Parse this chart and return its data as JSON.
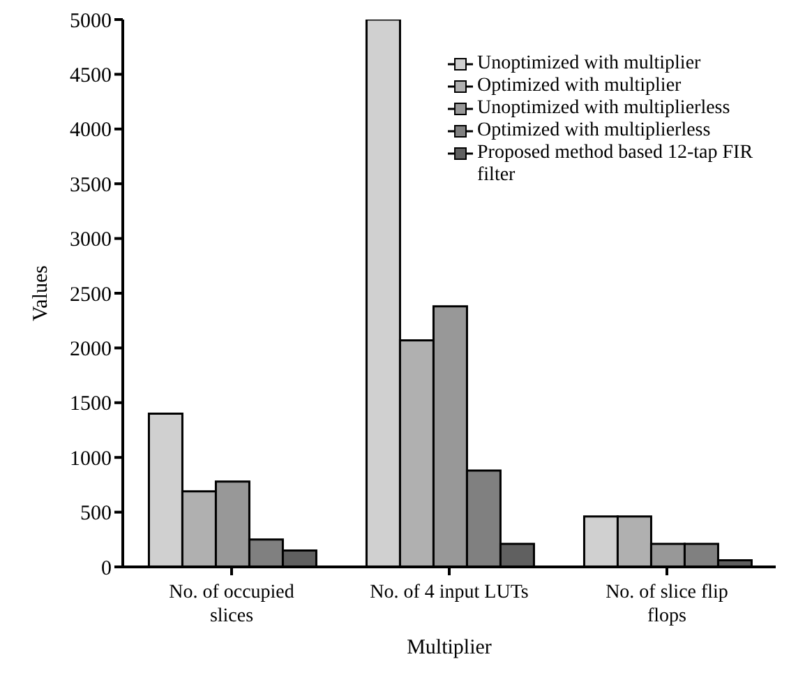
{
  "chart_data": {
    "type": "bar",
    "xlabel": "Multiplier",
    "ylabel": "Values",
    "categories": [
      "No. of occupied slices",
      "No. of 4 input LUTs",
      "No. of slice flip flops"
    ],
    "series": [
      {
        "name": "Unoptimized with multiplier",
        "color": "#d0d0d0",
        "values": [
          1400,
          5000,
          460
        ]
      },
      {
        "name": "Optimized with multiplier",
        "color": "#b0b0b0",
        "values": [
          690,
          2070,
          460
        ]
      },
      {
        "name": "Unoptimized with multiplierless",
        "color": "#989898",
        "values": [
          780,
          2380,
          210
        ]
      },
      {
        "name": "Optimized with multiplierless",
        "color": "#808080",
        "values": [
          250,
          880,
          210
        ]
      },
      {
        "name": "Proposed method based 12-tap FIR filter",
        "color": "#606060",
        "values": [
          150,
          210,
          60
        ]
      }
    ],
    "ylim": [
      0,
      5000
    ],
    "yticks": [
      0,
      500,
      1000,
      1500,
      2000,
      2500,
      3000,
      3500,
      4000,
      4500,
      5000
    ],
    "grid": false,
    "legend": "top right"
  }
}
